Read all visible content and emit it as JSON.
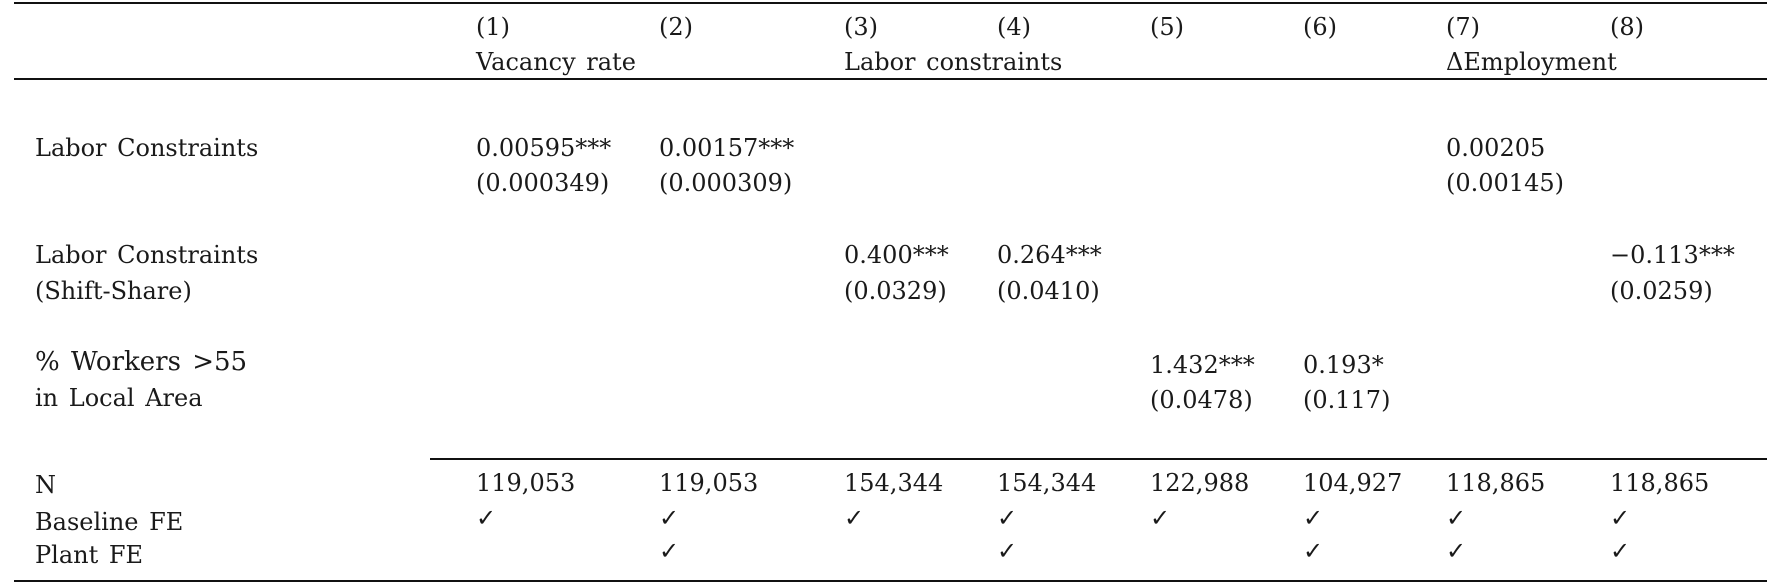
{
  "header": {
    "col_numbers": [
      "(1)",
      "(2)",
      "(3)",
      "(4)",
      "(5)",
      "(6)",
      "(7)",
      "(8)"
    ],
    "group_labels": {
      "vacancy_rate": "Vacancy rate",
      "labor_constraints": "Labor constraints",
      "delta_employment": "ΔEmployment"
    }
  },
  "rows": {
    "labor_constraints": {
      "label": "Labor Constraints",
      "c1_coef": "0.00595***",
      "c1_se": "(0.000349)",
      "c2_coef": "0.00157***",
      "c2_se": "(0.000309)",
      "c7_coef": "0.00205",
      "c7_se": "(0.00145)"
    },
    "labor_constraints_ss": {
      "label_line1": "Labor Constraints",
      "label_line2": "(Shift-Share)",
      "c3_coef": "0.400***",
      "c3_se": "(0.0329)",
      "c4_coef": "0.264***",
      "c4_se": "(0.0410)",
      "c8_coef": "−0.113***",
      "c8_se": "(0.0259)"
    },
    "workers_55": {
      "label_line1": "% Workers >55",
      "label_line2": "in Local Area",
      "c5_coef": "1.432***",
      "c5_se": "(0.0478)",
      "c6_coef": "0.193*",
      "c6_se": "(0.117)"
    }
  },
  "footer": {
    "n_label": "N",
    "n_values": [
      "119,053",
      "119,053",
      "154,344",
      "154,344",
      "122,988",
      "104,927",
      "118,865",
      "118,865"
    ],
    "baseline_fe_label": "Baseline FE",
    "plant_fe_label": "Plant FE",
    "check": "✓"
  }
}
